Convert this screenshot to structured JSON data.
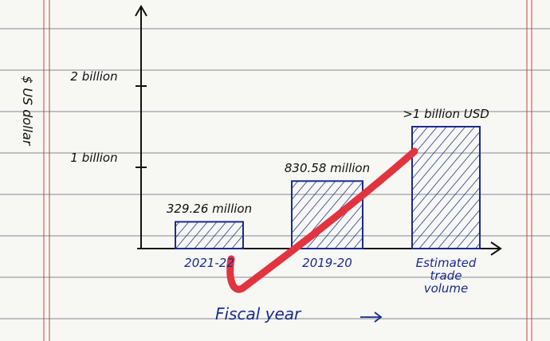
{
  "chart_data": {
    "type": "bar",
    "categories": [
      "2021-22",
      "2019-20",
      "Estimated trade volume"
    ],
    "values": [
      0.32926,
      0.83058,
      1.5
    ],
    "value_labels": [
      "329.26 million",
      "830.58 million",
      ">1 billion USD"
    ],
    "color": "#1b2b8f",
    "ylim": [
      0,
      3
    ],
    "yticks": [
      {
        "value": 1,
        "label": "1 billion"
      },
      {
        "value": 2,
        "label": "2 billion"
      }
    ],
    "y_label": "$ US dollar",
    "x_label": "Fiscal year"
  }
}
